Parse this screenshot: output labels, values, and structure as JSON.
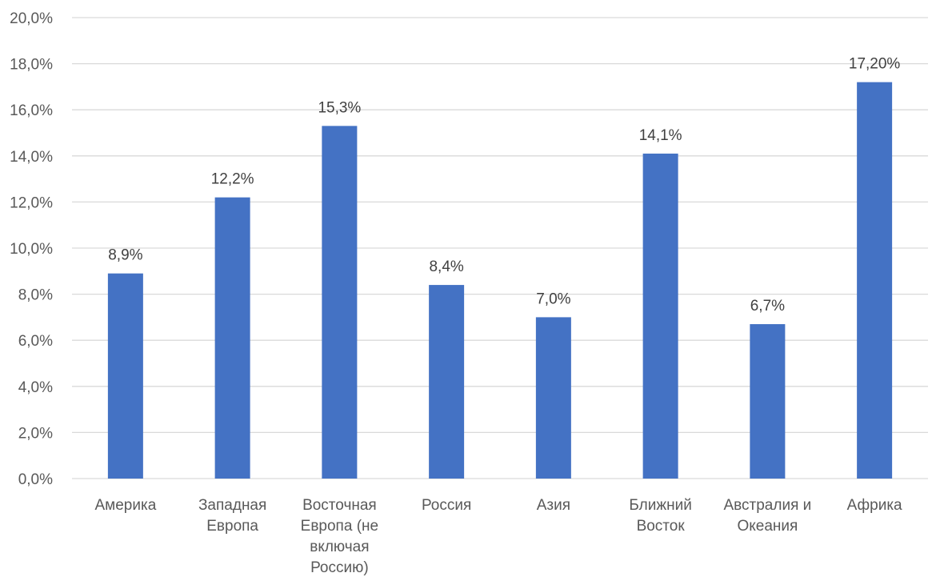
{
  "chart_data": {
    "type": "bar",
    "categories": [
      [
        "Америка"
      ],
      [
        "Западная",
        "Европа"
      ],
      [
        "Восточная",
        "Европа (не",
        "включая",
        "Россию)"
      ],
      [
        "Россия"
      ],
      [
        "Азия"
      ],
      [
        "Ближний",
        "Восток"
      ],
      [
        "Австралия и",
        "Океания"
      ],
      [
        "Африка"
      ]
    ],
    "values": [
      8.9,
      12.2,
      15.3,
      8.4,
      7.0,
      14.1,
      6.7,
      17.2
    ],
    "data_labels": [
      "8,9%",
      "12,2%",
      "15,3%",
      "8,4%",
      "7,0%",
      "14,1%",
      "6,7%",
      "17,20%"
    ],
    "y_ticks": [
      {
        "value": 0,
        "label": "0,0%"
      },
      {
        "value": 2,
        "label": "2,0%"
      },
      {
        "value": 4,
        "label": "4,0%"
      },
      {
        "value": 6,
        "label": "6,0%"
      },
      {
        "value": 8,
        "label": "8,0%"
      },
      {
        "value": 10,
        "label": "10,0%"
      },
      {
        "value": 12,
        "label": "12,0%"
      },
      {
        "value": 14,
        "label": "14,0%"
      },
      {
        "value": 16,
        "label": "16,0%"
      },
      {
        "value": 18,
        "label": "18,0%"
      },
      {
        "value": 20,
        "label": "20,0%"
      }
    ],
    "ylim": [
      0,
      20
    ],
    "grid": true,
    "legend": "none",
    "bar_color": "#4472c4"
  }
}
